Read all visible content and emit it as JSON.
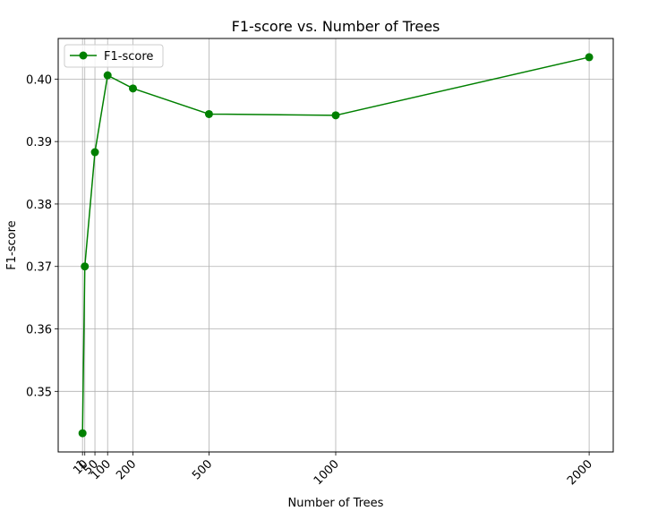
{
  "chart_data": {
    "type": "line",
    "title": "F1-score vs. Number of Trees",
    "xlabel": "Number of Trees",
    "ylabel": "F1-score",
    "xlim": [
      -95,
      2095
    ],
    "ylim": [
      0.3403,
      0.4065
    ],
    "xticks": [
      1,
      10,
      50,
      100,
      200,
      500,
      1000,
      2000
    ],
    "yticks": [
      0.35,
      0.36,
      0.37,
      0.38,
      0.39,
      0.4
    ],
    "grid": true,
    "legend": "top-left",
    "series": [
      {
        "name": "F1-score",
        "color": "#008000",
        "marker": "circle",
        "x": [
          1,
          10,
          50,
          100,
          200,
          500,
          1000,
          2000
        ],
        "y": [
          0.3433,
          0.37,
          0.3883,
          0.4006,
          0.3985,
          0.3944,
          0.3942,
          0.4035
        ]
      }
    ]
  }
}
